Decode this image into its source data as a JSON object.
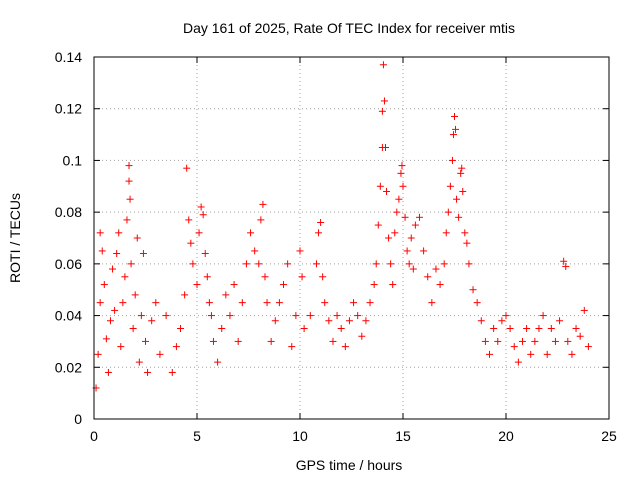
{
  "chart_data": {
    "type": "scatter",
    "title": "Day 161 of 2025, Rate Of TEC Index for receiver mtis",
    "xlabel": "GPS time / hours",
    "ylabel": "ROTI / TECUs",
    "xlim": [
      0,
      25
    ],
    "ylim": [
      0,
      0.14
    ],
    "xticks": [
      0,
      5,
      10,
      15,
      20,
      25
    ],
    "xtick_labels": [
      "0",
      "5",
      "10",
      "15",
      "20",
      "25"
    ],
    "yticks": [
      0,
      0.02,
      0.04,
      0.06,
      0.08,
      0.1,
      0.12,
      0.14
    ],
    "ytick_labels": [
      "0",
      "0.02",
      "0.04",
      "0.06",
      "0.08",
      "0.1",
      "0.12",
      "0.14"
    ],
    "grid": true,
    "marker": "plus",
    "marker_color": "#ff0000",
    "series": [
      {
        "name": "ROTI",
        "points": [
          [
            0.1,
            0.012
          ],
          [
            0.2,
            0.025
          ],
          [
            0.3,
            0.045
          ],
          [
            0.3,
            0.072
          ],
          [
            0.4,
            0.065
          ],
          [
            0.5,
            0.052
          ],
          [
            0.6,
            0.031
          ],
          [
            0.7,
            0.018
          ],
          [
            0.8,
            0.038
          ],
          [
            0.9,
            0.058
          ],
          [
            1.0,
            0.042
          ],
          [
            1.1,
            0.064
          ],
          [
            1.2,
            0.072
          ],
          [
            1.3,
            0.028
          ],
          [
            1.4,
            0.045
          ],
          [
            1.5,
            0.055
          ],
          [
            1.6,
            0.077
          ],
          [
            1.7,
            0.098
          ],
          [
            1.7,
            0.092
          ],
          [
            1.75,
            0.085
          ],
          [
            1.8,
            0.06
          ],
          [
            1.9,
            0.035
          ],
          [
            2.0,
            0.048
          ],
          [
            2.1,
            0.07
          ],
          [
            2.2,
            0.022
          ],
          [
            2.3,
            0.04
          ],
          [
            2.4,
            0.064
          ],
          [
            2.5,
            0.03
          ],
          [
            2.6,
            0.018
          ],
          [
            2.8,
            0.038
          ],
          [
            3.0,
            0.045
          ],
          [
            3.2,
            0.025
          ],
          [
            3.5,
            0.04
          ],
          [
            3.8,
            0.018
          ],
          [
            4.0,
            0.028
          ],
          [
            4.2,
            0.035
          ],
          [
            4.4,
            0.048
          ],
          [
            4.5,
            0.097
          ],
          [
            4.6,
            0.077
          ],
          [
            4.7,
            0.068
          ],
          [
            4.8,
            0.06
          ],
          [
            5.0,
            0.052
          ],
          [
            5.1,
            0.072
          ],
          [
            5.2,
            0.082
          ],
          [
            5.3,
            0.079
          ],
          [
            5.4,
            0.064
          ],
          [
            5.5,
            0.055
          ],
          [
            5.6,
            0.045
          ],
          [
            5.7,
            0.04
          ],
          [
            5.8,
            0.03
          ],
          [
            6.0,
            0.022
          ],
          [
            6.2,
            0.035
          ],
          [
            6.4,
            0.048
          ],
          [
            6.6,
            0.04
          ],
          [
            6.8,
            0.052
          ],
          [
            7.0,
            0.03
          ],
          [
            7.2,
            0.045
          ],
          [
            7.4,
            0.06
          ],
          [
            7.6,
            0.072
          ],
          [
            7.8,
            0.065
          ],
          [
            8.0,
            0.06
          ],
          [
            8.1,
            0.077
          ],
          [
            8.2,
            0.083
          ],
          [
            8.3,
            0.055
          ],
          [
            8.4,
            0.045
          ],
          [
            8.6,
            0.03
          ],
          [
            8.8,
            0.038
          ],
          [
            9.0,
            0.045
          ],
          [
            9.2,
            0.052
          ],
          [
            9.4,
            0.06
          ],
          [
            9.6,
            0.028
          ],
          [
            9.8,
            0.04
          ],
          [
            10.0,
            0.065
          ],
          [
            10.1,
            0.055
          ],
          [
            10.2,
            0.035
          ],
          [
            10.5,
            0.04
          ],
          [
            10.8,
            0.06
          ],
          [
            10.9,
            0.072
          ],
          [
            11.0,
            0.076
          ],
          [
            11.1,
            0.055
          ],
          [
            11.2,
            0.045
          ],
          [
            11.4,
            0.038
          ],
          [
            11.6,
            0.03
          ],
          [
            11.8,
            0.04
          ],
          [
            12.0,
            0.035
          ],
          [
            12.2,
            0.028
          ],
          [
            12.4,
            0.038
          ],
          [
            12.6,
            0.045
          ],
          [
            12.8,
            0.04
          ],
          [
            13.0,
            0.032
          ],
          [
            13.2,
            0.038
          ],
          [
            13.4,
            0.045
          ],
          [
            13.6,
            0.052
          ],
          [
            13.7,
            0.06
          ],
          [
            13.8,
            0.075
          ],
          [
            13.9,
            0.09
          ],
          [
            14.0,
            0.105
          ],
          [
            14.0,
            0.119
          ],
          [
            14.05,
            0.137
          ],
          [
            14.1,
            0.123
          ],
          [
            14.15,
            0.105
          ],
          [
            14.2,
            0.088
          ],
          [
            14.3,
            0.07
          ],
          [
            14.4,
            0.06
          ],
          [
            14.5,
            0.052
          ],
          [
            14.6,
            0.072
          ],
          [
            14.7,
            0.08
          ],
          [
            14.8,
            0.085
          ],
          [
            14.9,
            0.095
          ],
          [
            14.95,
            0.098
          ],
          [
            15.0,
            0.09
          ],
          [
            15.1,
            0.078
          ],
          [
            15.2,
            0.065
          ],
          [
            15.3,
            0.06
          ],
          [
            15.4,
            0.07
          ],
          [
            15.5,
            0.058
          ],
          [
            15.6,
            0.075
          ],
          [
            15.8,
            0.078
          ],
          [
            16.0,
            0.065
          ],
          [
            16.2,
            0.055
          ],
          [
            16.4,
            0.045
          ],
          [
            16.6,
            0.058
          ],
          [
            16.8,
            0.052
          ],
          [
            17.0,
            0.06
          ],
          [
            17.1,
            0.072
          ],
          [
            17.2,
            0.08
          ],
          [
            17.3,
            0.09
          ],
          [
            17.4,
            0.1
          ],
          [
            17.45,
            0.11
          ],
          [
            17.5,
            0.117
          ],
          [
            17.55,
            0.112
          ],
          [
            17.6,
            0.085
          ],
          [
            17.7,
            0.078
          ],
          [
            17.8,
            0.095
          ],
          [
            17.85,
            0.097
          ],
          [
            17.9,
            0.088
          ],
          [
            18.0,
            0.072
          ],
          [
            18.1,
            0.068
          ],
          [
            18.2,
            0.06
          ],
          [
            18.4,
            0.05
          ],
          [
            18.6,
            0.045
          ],
          [
            18.8,
            0.038
          ],
          [
            19.0,
            0.03
          ],
          [
            19.2,
            0.025
          ],
          [
            19.4,
            0.035
          ],
          [
            19.6,
            0.03
          ],
          [
            19.8,
            0.038
          ],
          [
            20.0,
            0.04
          ],
          [
            20.2,
            0.035
          ],
          [
            20.4,
            0.028
          ],
          [
            20.6,
            0.022
          ],
          [
            20.8,
            0.03
          ],
          [
            21.0,
            0.035
          ],
          [
            21.2,
            0.025
          ],
          [
            21.4,
            0.03
          ],
          [
            21.6,
            0.035
          ],
          [
            21.8,
            0.04
          ],
          [
            22.0,
            0.025
          ],
          [
            22.2,
            0.035
          ],
          [
            22.4,
            0.03
          ],
          [
            22.6,
            0.038
          ],
          [
            22.8,
            0.061
          ],
          [
            22.9,
            0.059
          ],
          [
            23.0,
            0.03
          ],
          [
            23.2,
            0.025
          ],
          [
            23.4,
            0.035
          ],
          [
            23.6,
            0.032
          ],
          [
            23.8,
            0.042
          ],
          [
            24.0,
            0.028
          ]
        ]
      }
    ]
  }
}
